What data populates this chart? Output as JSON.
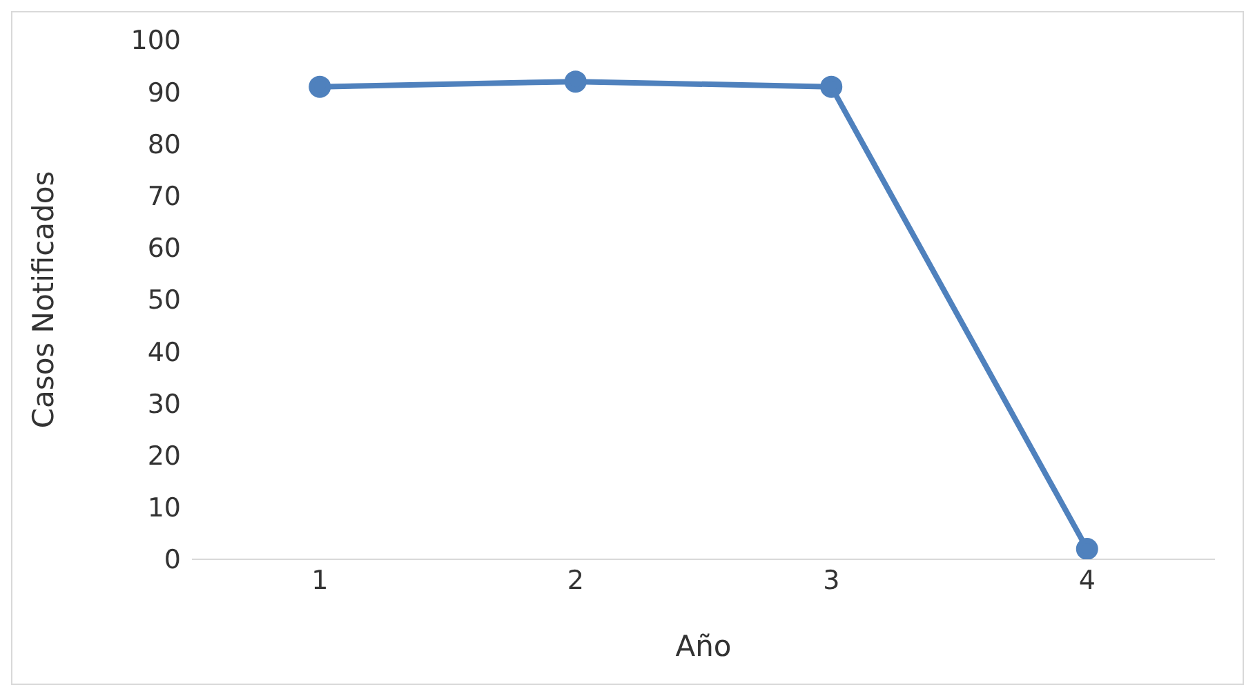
{
  "chart_data": {
    "type": "line",
    "xlabel": "Año",
    "ylabel": "Casos Notificados",
    "categories": [
      "1",
      "2",
      "3",
      "4"
    ],
    "series": [
      {
        "color": "#4f81bd",
        "values": [
          91,
          92,
          91,
          2
        ]
      }
    ],
    "ylim": [
      0,
      100
    ],
    "yticks": [
      0,
      10,
      20,
      30,
      40,
      50,
      60,
      70,
      80,
      90,
      100
    ],
    "legend": false,
    "marker": "circle",
    "line_style": "solid"
  }
}
